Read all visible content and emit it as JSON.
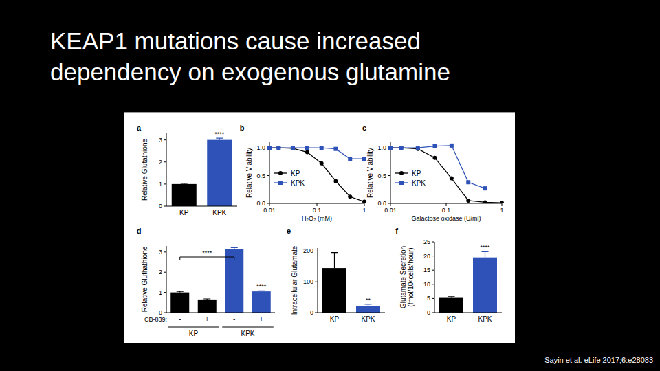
{
  "slide": {
    "title": [
      "KEAP1 mutations cause increased",
      "dependency on exogenous glutamine"
    ],
    "citation": "Sayin et al. eLife 2017;6:e28083"
  },
  "chart_data": [
    {
      "type": "bar",
      "title": "a",
      "y_label": "Relative Glutathione",
      "categories": [
        "KP",
        "KPK"
      ],
      "values": [
        1.0,
        3.0
      ],
      "errors": [
        0.03,
        0.08
      ],
      "colors": [
        "#000000",
        "#2f52b8"
      ],
      "ylim": [
        0,
        3.3
      ],
      "yticks": [
        0,
        1,
        2,
        3
      ],
      "annotations": [
        {
          "text": "****",
          "category": 1
        }
      ]
    },
    {
      "type": "line",
      "title": "b",
      "x_label": "H₂O₂ (mM)",
      "y_label": "Relative Viability",
      "log": "x",
      "xlim": [
        0.01,
        1
      ],
      "xticks": [
        0.01,
        0.1,
        1
      ],
      "ylim": [
        0,
        1.1
      ],
      "yticks": [
        {
          "value": 0,
          "label": "0.0"
        },
        {
          "value": 0.5,
          "label": "0.5"
        },
        {
          "value": 1,
          "label": "1.0"
        }
      ],
      "legend": "left",
      "series": [
        {
          "name": "KP",
          "color": "#000000",
          "marker": "circle",
          "x": [
            0.01,
            0.0156,
            0.031,
            0.0625,
            0.125,
            0.25,
            0.5,
            1
          ],
          "values": [
            1.0,
            1.0,
            0.99,
            0.92,
            0.72,
            0.4,
            0.12,
            0.03
          ]
        },
        {
          "name": "KPK",
          "color": "#2f52b8",
          "marker": "square",
          "x": [
            0.01,
            0.0156,
            0.031,
            0.0625,
            0.125,
            0.25,
            0.5,
            1
          ],
          "values": [
            1.0,
            1.0,
            1.0,
            1.0,
            1.0,
            0.98,
            0.8,
            0.8
          ]
        }
      ]
    },
    {
      "type": "line",
      "title": "c",
      "x_label": "Galactose oxidase (U/ml)",
      "y_label": "Relative Viability",
      "log": "x",
      "xlim": [
        0.01,
        1
      ],
      "xticks": [
        0.01,
        0.1,
        1
      ],
      "ylim": [
        0,
        1.1
      ],
      "yticks": [
        {
          "value": 0,
          "label": "0.0"
        },
        {
          "value": 0.5,
          "label": "0.5"
        },
        {
          "value": 1,
          "label": "1.0"
        }
      ],
      "legend": "left",
      "series": [
        {
          "name": "KP",
          "color": "#000000",
          "marker": "circle",
          "x": [
            0.01,
            0.0156,
            0.031,
            0.0625,
            0.125,
            0.25,
            0.5,
            1
          ],
          "values": [
            1.0,
            1.0,
            0.98,
            0.82,
            0.45,
            0.05,
            0.02,
            0.01
          ]
        },
        {
          "name": "KPK",
          "color": "#2f52b8",
          "marker": "square",
          "x": [
            0.01,
            0.0156,
            0.031,
            0.0625,
            0.125,
            0.25,
            0.5
          ],
          "values": [
            1.0,
            1.0,
            1.0,
            1.03,
            1.04,
            0.38,
            0.27
          ]
        }
      ]
    },
    {
      "type": "bar",
      "title": "d",
      "y_label": "Relative Gluthathione",
      "x_label": "CB-839:",
      "categories": [
        "-",
        "+",
        "-",
        "+"
      ],
      "groups": [
        {
          "label": "KP",
          "span": 2
        },
        {
          "label": "KPK",
          "span": 2
        }
      ],
      "values": [
        1.0,
        0.65,
        3.15,
        1.05
      ],
      "errors": [
        0.05,
        0.03,
        0.07,
        0.03
      ],
      "colors": [
        "#000000",
        "#000000",
        "#2f52b8",
        "#2f52b8"
      ],
      "ylim": [
        0,
        3.3
      ],
      "yticks": [
        0,
        1,
        2,
        3
      ],
      "annotations": [
        {
          "text": "****",
          "from": 0,
          "to": 2
        },
        {
          "text": "****",
          "category": 3
        }
      ]
    },
    {
      "type": "bar",
      "title": "e",
      "y_label": "Intracellular Glutamate",
      "categories": [
        "KP",
        "KPK"
      ],
      "values": [
        145,
        22
      ],
      "errors": [
        50,
        5
      ],
      "colors": [
        "#000000",
        "#2f52b8"
      ],
      "ylim": [
        0,
        210
      ],
      "yticks": [
        0,
        100,
        200
      ],
      "annotations": [
        {
          "text": "**",
          "category": 1
        }
      ]
    },
    {
      "type": "bar",
      "title": "f",
      "y_label": [
        "Glutamate Secretion",
        "(fmol/10⁶cells/hour)"
      ],
      "categories": [
        "KP",
        "KPK"
      ],
      "values": [
        5.2,
        19.5
      ],
      "errors": [
        0.4,
        2.0
      ],
      "colors": [
        "#000000",
        "#2f52b8"
      ],
      "ylim": [
        0,
        25
      ],
      "yticks": [
        0,
        5,
        10,
        15,
        20,
        25
      ],
      "annotations": [
        {
          "text": "****",
          "category": 1
        }
      ]
    }
  ]
}
